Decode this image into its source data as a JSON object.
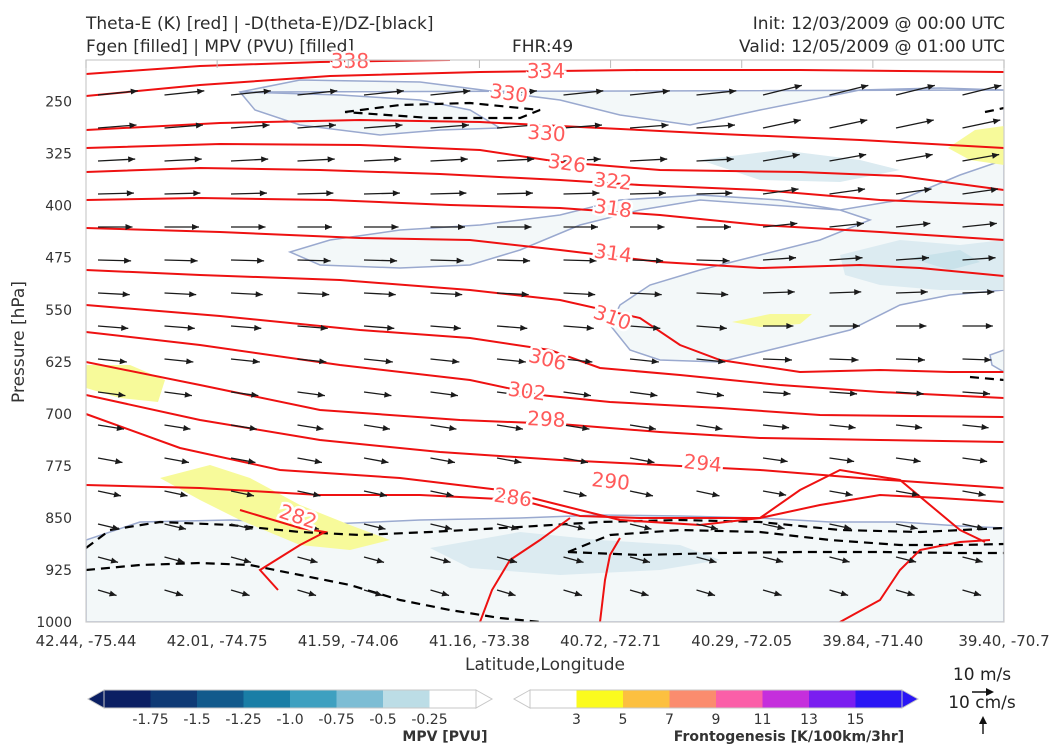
{
  "header": {
    "line1_left": "Theta-E (K) [red] | -D(theta-E)/DZ-[black]",
    "line2_left": "Fgen [filled] | MPV (PVU) [filled]",
    "fhr": "FHR:49",
    "init": "Init: 12/03/2009 @ 00:00 UTC",
    "valid": "Valid: 12/05/2009 @ 01:00 UTC"
  },
  "chart_data": {
    "type": "cross-section",
    "ylabel": "Pressure [hPa]",
    "xlabel": "Latitude,Longitude",
    "y_ticks": [
      "250",
      "325",
      "400",
      "475",
      "550",
      "625",
      "700",
      "775",
      "850",
      "925",
      "1000"
    ],
    "x_ticks": [
      "42.44, -75.44",
      "42.01, -74.75",
      "41.59, -74.06",
      "41.16, -73.38",
      "40.72, -72.71",
      "40.29, -72.05",
      "39.84, -71.40",
      "39.40, -70.7"
    ],
    "ylim": [
      1000,
      190
    ],
    "theta_e_color": "#ee1111",
    "theta_e_labels": [
      "338",
      "334",
      "330",
      "330",
      "326",
      "322",
      "318",
      "314",
      "310",
      "306",
      "302",
      "298",
      "294",
      "290",
      "286",
      "282"
    ],
    "reference_vector": {
      "horizontal": "10 m/s",
      "vertical": "10 cm/s"
    },
    "mpv_colorbar": {
      "label": "MPV [PVU]",
      "ticks": [
        "-1.75",
        "-1.5",
        "-1.25",
        "-1.0",
        "-0.75",
        "-0.5",
        "-0.25"
      ],
      "colors": [
        "#0b1f63",
        "#0f3a75",
        "#125a8c",
        "#1a7ea6",
        "#3ea0c0",
        "#7dbdd4",
        "#bcdde6",
        "#ffffff"
      ]
    },
    "fgen_colorbar": {
      "label": "Frontogenesis [K/100km/3hr]",
      "ticks": [
        "3",
        "5",
        "7",
        "9",
        "11",
        "13",
        "15"
      ],
      "colors": [
        "#ffffff",
        "#fbfb1e",
        "#fcc040",
        "#fb8c6e",
        "#fb5fa8",
        "#c52fdc",
        "#7a1ef0",
        "#2a16f5"
      ]
    }
  }
}
